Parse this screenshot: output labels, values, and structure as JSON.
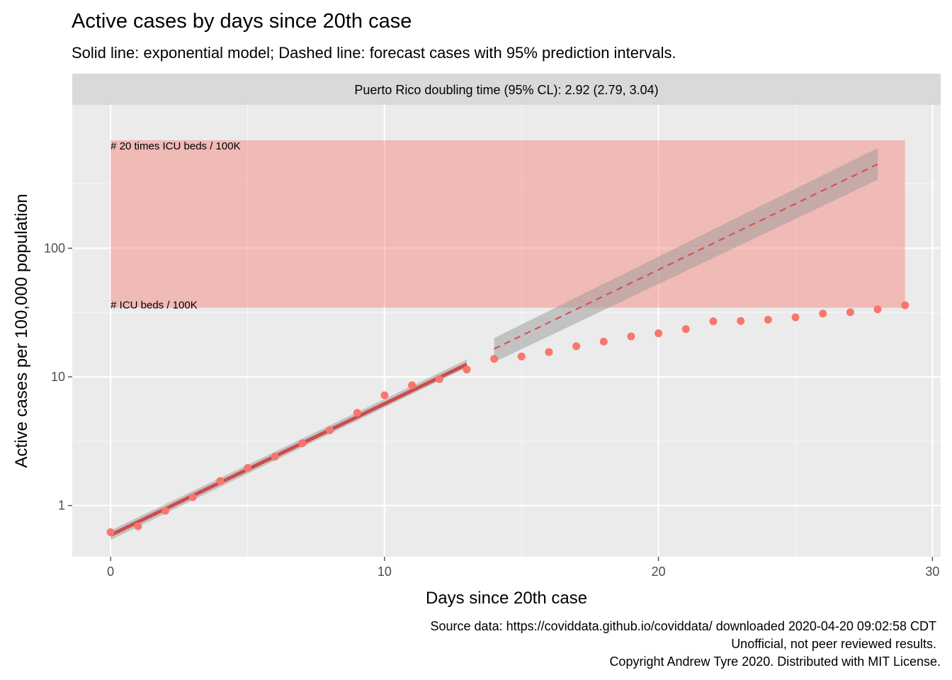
{
  "chart_data": {
    "type": "scatter",
    "title": "Active cases by days since 20th case",
    "subtitle": "Solid line: exponential model; Dashed line: forecast cases with 95% prediction intervals.",
    "facet_label": "Puerto Rico doubling time (95% CL): 2.92 (2.79, 3.04)",
    "xlabel": "Days since 20th case",
    "ylabel": "Active cases per 100,000 population",
    "y_scale": "log10",
    "xlim": [
      -1.4,
      30.3
    ],
    "ylim": [
      0.4,
      1300
    ],
    "x_ticks": [
      0,
      10,
      20,
      30
    ],
    "x_tick_labels": [
      "0",
      "10",
      "20",
      "30"
    ],
    "y_ticks": [
      1,
      10,
      100
    ],
    "y_tick_labels": [
      "1",
      "10",
      "100"
    ],
    "grid": true,
    "icu_band": {
      "x": [
        0,
        29
      ],
      "y": [
        34.5,
        690
      ],
      "color": "#f8766d",
      "labels": [
        "# ICU beds / 100K",
        "# 20 times ICU beds / 100K"
      ]
    },
    "model_fit": {
      "x": [
        0,
        13
      ],
      "y": [
        0.59,
        12.5
      ],
      "ci_low": [
        0.54,
        11.8
      ],
      "ci_high": [
        0.64,
        13.6
      ],
      "color": "#cc4c4c"
    },
    "forecast": {
      "x": [
        14,
        28
      ],
      "y": [
        16.5,
        450
      ],
      "pi_low": [
        13,
        340
      ],
      "pi_high": [
        20,
        600
      ],
      "color": "#d9534f"
    },
    "series": [
      {
        "x": [
          0,
          1,
          2,
          3,
          4,
          5,
          6,
          7,
          8,
          9,
          10,
          11,
          12,
          13,
          14,
          15,
          16,
          17,
          18,
          19,
          20,
          21,
          22,
          23,
          24,
          25,
          26,
          27,
          28,
          29
        ],
        "values": [
          0.62,
          0.69,
          0.91,
          1.16,
          1.55,
          1.96,
          2.4,
          3.05,
          3.85,
          5.25,
          7.2,
          8.6,
          9.6,
          11.4,
          13.8,
          14.4,
          15.6,
          17.3,
          18.8,
          20.6,
          21.8,
          23.5,
          27.0,
          27.2,
          27.8,
          29.0,
          31.0,
          31.8,
          33.5,
          36.0
        ]
      }
    ],
    "point_color": "#f8766d"
  },
  "caption": {
    "line1": "Source data: https://coviddata.github.io/coviddata/ downloaded  2020-04-20 09:02:58 CDT",
    "line2": "Unofficial, not peer reviewed results.",
    "line3": "Copyright Andrew Tyre 2020. Distributed with MIT License."
  }
}
